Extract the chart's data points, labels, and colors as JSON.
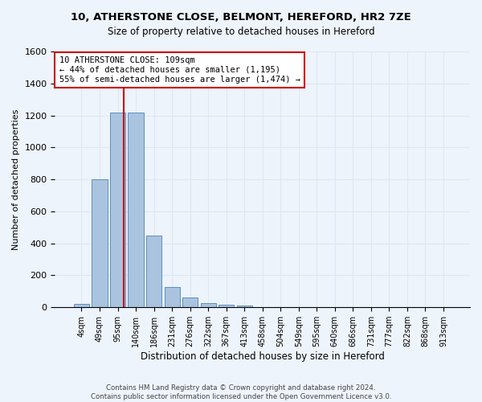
{
  "title_line1": "10, ATHERSTONE CLOSE, BELMONT, HEREFORD, HR2 7ZE",
  "title_line2": "Size of property relative to detached houses in Hereford",
  "xlabel": "Distribution of detached houses by size in Hereford",
  "ylabel": "Number of detached properties",
  "bar_color": "#aac4e0",
  "bar_edge_color": "#5a8fc0",
  "bin_labels": [
    "4sqm",
    "49sqm",
    "95sqm",
    "140sqm",
    "186sqm",
    "231sqm",
    "276sqm",
    "322sqm",
    "367sqm",
    "413sqm",
    "458sqm",
    "504sqm",
    "549sqm",
    "595sqm",
    "640sqm",
    "686sqm",
    "731sqm",
    "777sqm",
    "822sqm",
    "868sqm",
    "913sqm"
  ],
  "bar_values": [
    20,
    800,
    1220,
    1220,
    450,
    125,
    60,
    25,
    15,
    10,
    0,
    0,
    0,
    0,
    0,
    0,
    0,
    0,
    0,
    0,
    0
  ],
  "ylim": [
    0,
    1600
  ],
  "yticks": [
    0,
    200,
    400,
    600,
    800,
    1000,
    1200,
    1400,
    1600
  ],
  "property_line_x": 2.35,
  "annotation_text": "10 ATHERSTONE CLOSE: 109sqm\n← 44% of detached houses are smaller (1,195)\n55% of semi-detached houses are larger (1,474) →",
  "annotation_box_color": "#ffffff",
  "annotation_border_color": "#cc0000",
  "vline_color": "#cc0000",
  "grid_color": "#dce8f5",
  "background_color": "#eef4fb",
  "footer_line1": "Contains HM Land Registry data © Crown copyright and database right 2024.",
  "footer_line2": "Contains public sector information licensed under the Open Government Licence v3.0."
}
